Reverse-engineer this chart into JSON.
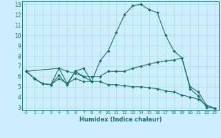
{
  "xlabel": "Humidex (Indice chaleur)",
  "background_color": "#cceeff",
  "line_color": "#1a7070",
  "grid_color": "#aadddd",
  "xlim": [
    -0.5,
    23.5
  ],
  "ylim": [
    2.7,
    13.3
  ],
  "xticks": [
    0,
    1,
    2,
    3,
    4,
    5,
    6,
    7,
    8,
    9,
    10,
    11,
    12,
    13,
    14,
    15,
    16,
    17,
    18,
    19,
    20,
    21,
    22,
    23
  ],
  "yticks": [
    3,
    4,
    5,
    6,
    7,
    8,
    9,
    10,
    11,
    12,
    13
  ],
  "series": [
    {
      "x": [
        0,
        1,
        2,
        3,
        4,
        5,
        6,
        7,
        8,
        9,
        10,
        11,
        12,
        13,
        14,
        15,
        16,
        17,
        18,
        19,
        20,
        21,
        22,
        23
      ],
      "y": [
        6.5,
        5.8,
        5.3,
        5.2,
        6.1,
        5.2,
        6.5,
        6.0,
        5.5,
        7.5,
        8.5,
        10.3,
        12.0,
        12.9,
        13.0,
        12.5,
        12.2,
        10.0,
        8.5,
        7.8,
        4.8,
        4.1,
        3.0,
        2.9
      ]
    },
    {
      "x": [
        0,
        1,
        2,
        3,
        4,
        5,
        6,
        7,
        8,
        9,
        10,
        11,
        12,
        13,
        14,
        15,
        16,
        17,
        18,
        19,
        20,
        21,
        22,
        23
      ],
      "y": [
        6.5,
        5.8,
        5.3,
        5.2,
        6.8,
        6.5,
        6.3,
        6.0,
        6.0,
        6.0,
        6.5,
        6.5,
        6.5,
        6.8,
        7.0,
        7.2,
        7.4,
        7.5,
        7.6,
        7.8,
        5.0,
        4.5,
        3.2,
        2.9
      ]
    },
    {
      "x": [
        0,
        1,
        2,
        3,
        4,
        5,
        6,
        7,
        8,
        9,
        10,
        11,
        12,
        13,
        14,
        15,
        16,
        17,
        18,
        19,
        20,
        21,
        22,
        23
      ],
      "y": [
        6.5,
        5.8,
        5.3,
        5.2,
        5.8,
        5.3,
        5.8,
        5.5,
        5.5,
        5.5,
        5.2,
        5.2,
        5.1,
        5.0,
        5.0,
        4.9,
        4.8,
        4.6,
        4.5,
        4.2,
        4.0,
        3.8,
        3.2,
        2.9
      ]
    },
    {
      "x": [
        0,
        4,
        5,
        6,
        7,
        8
      ],
      "y": [
        6.5,
        6.8,
        5.3,
        6.5,
        6.8,
        5.5
      ]
    }
  ]
}
